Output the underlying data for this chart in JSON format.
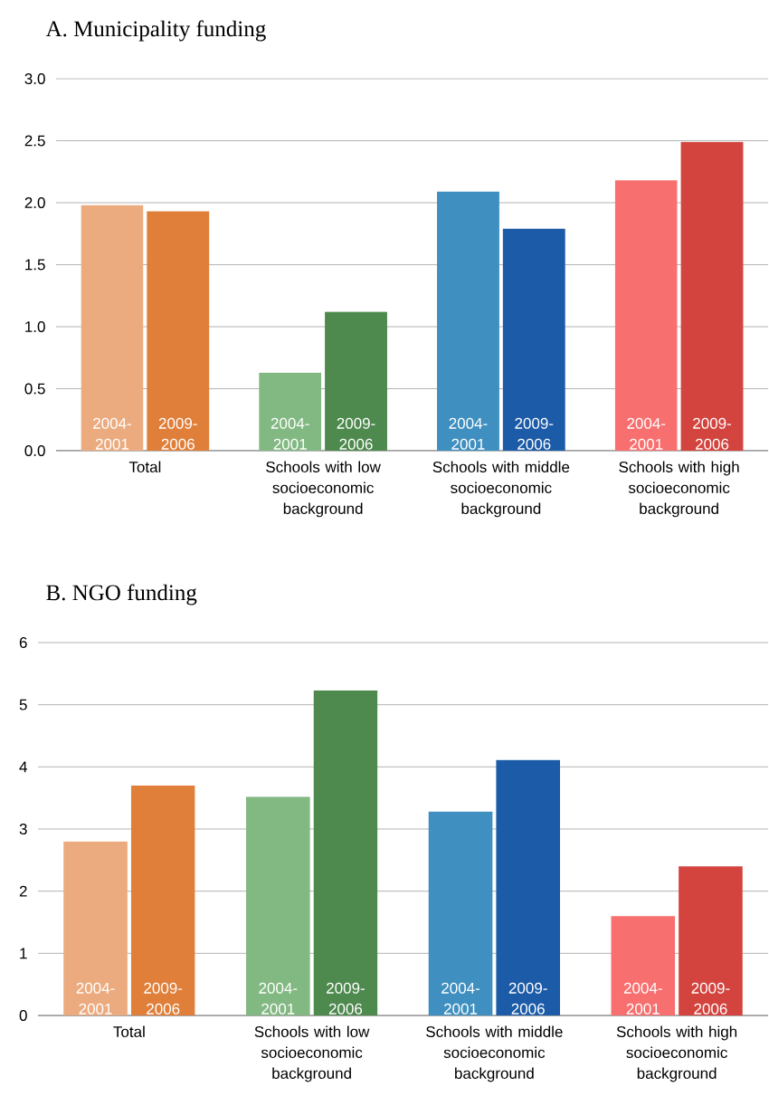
{
  "chart_data": [
    {
      "type": "bar",
      "title": "A.  Municipality funding",
      "categories": [
        "Total",
        "Schools with low socioeconomic background",
        "Schools with middle socioeconomic background",
        "Schools with high socioeconomic background"
      ],
      "series": [
        {
          "name": "2004-2001",
          "colors": [
            "#ebab7f",
            "#82b882",
            "#3f8fc0",
            "#f86f6f"
          ],
          "values": [
            1.98,
            0.63,
            2.09,
            2.18
          ]
        },
        {
          "name": "2009-2006",
          "colors": [
            "#e07f3a",
            "#4e894e",
            "#1c5ba7",
            "#d3443f"
          ],
          "values": [
            1.93,
            1.12,
            1.79,
            2.49
          ]
        }
      ],
      "ylim": [
        0,
        3
      ],
      "yticks": [
        {
          "value": 0,
          "label": "0.0"
        },
        {
          "value": 0.5,
          "label": "0.5"
        },
        {
          "value": 1,
          "label": "1.0"
        },
        {
          "value": 1.5,
          "label": "1.5"
        },
        {
          "value": 2,
          "label": "2.0"
        },
        {
          "value": 2.5,
          "label": "2.5"
        },
        {
          "value": 3,
          "label": "3.0"
        }
      ],
      "grid": "y"
    },
    {
      "type": "bar",
      "title": "B.  NGO funding",
      "categories": [
        "Total",
        "Schools with low socioeconomic background",
        "Schools with middle socioeconomic background",
        "Schools with high socioeconomic background"
      ],
      "series": [
        {
          "name": "2004-2001",
          "colors": [
            "#ebab7f",
            "#82b882",
            "#3f8fc0",
            "#f86f6f"
          ],
          "values": [
            2.8,
            3.52,
            3.28,
            1.6
          ]
        },
        {
          "name": "2009-2006",
          "colors": [
            "#e07f3a",
            "#4e894e",
            "#1c5ba7",
            "#d3443f"
          ],
          "values": [
            3.7,
            5.23,
            4.11,
            2.4
          ]
        }
      ],
      "ylim": [
        0,
        6
      ],
      "yticks": [
        0,
        1,
        2,
        3,
        4,
        5,
        6
      ],
      "grid": "y"
    }
  ]
}
